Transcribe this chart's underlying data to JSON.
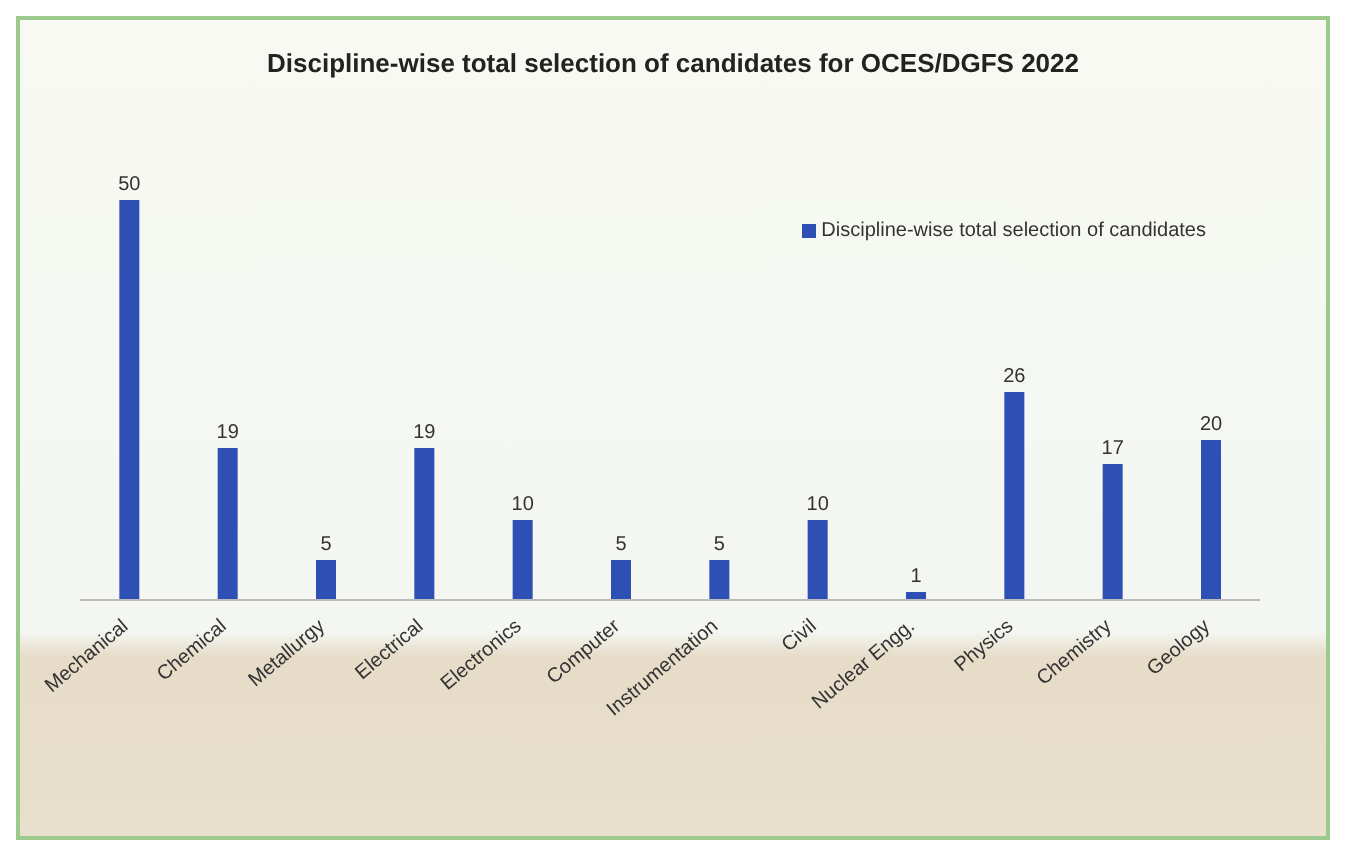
{
  "chart_data": {
    "type": "bar",
    "title": "Discipline-wise total selection of candidates for OCES/DGFS 2022",
    "categories": [
      "Mechanical",
      "Chemical",
      "Metallurgy",
      "Electrical",
      "Electronics",
      "Computer",
      "Instrumentation",
      "Civil",
      "Nuclear Engg.",
      "Physics",
      "Chemistry",
      "Geology"
    ],
    "series": [
      {
        "name": "Discipline-wise total selection of candidates",
        "color": "#2e4fb3",
        "values": [
          50,
          19,
          5,
          19,
          10,
          5,
          5,
          10,
          1,
          26,
          17,
          20
        ]
      }
    ],
    "data_labels": true,
    "legend": "top right",
    "grid": false
  }
}
